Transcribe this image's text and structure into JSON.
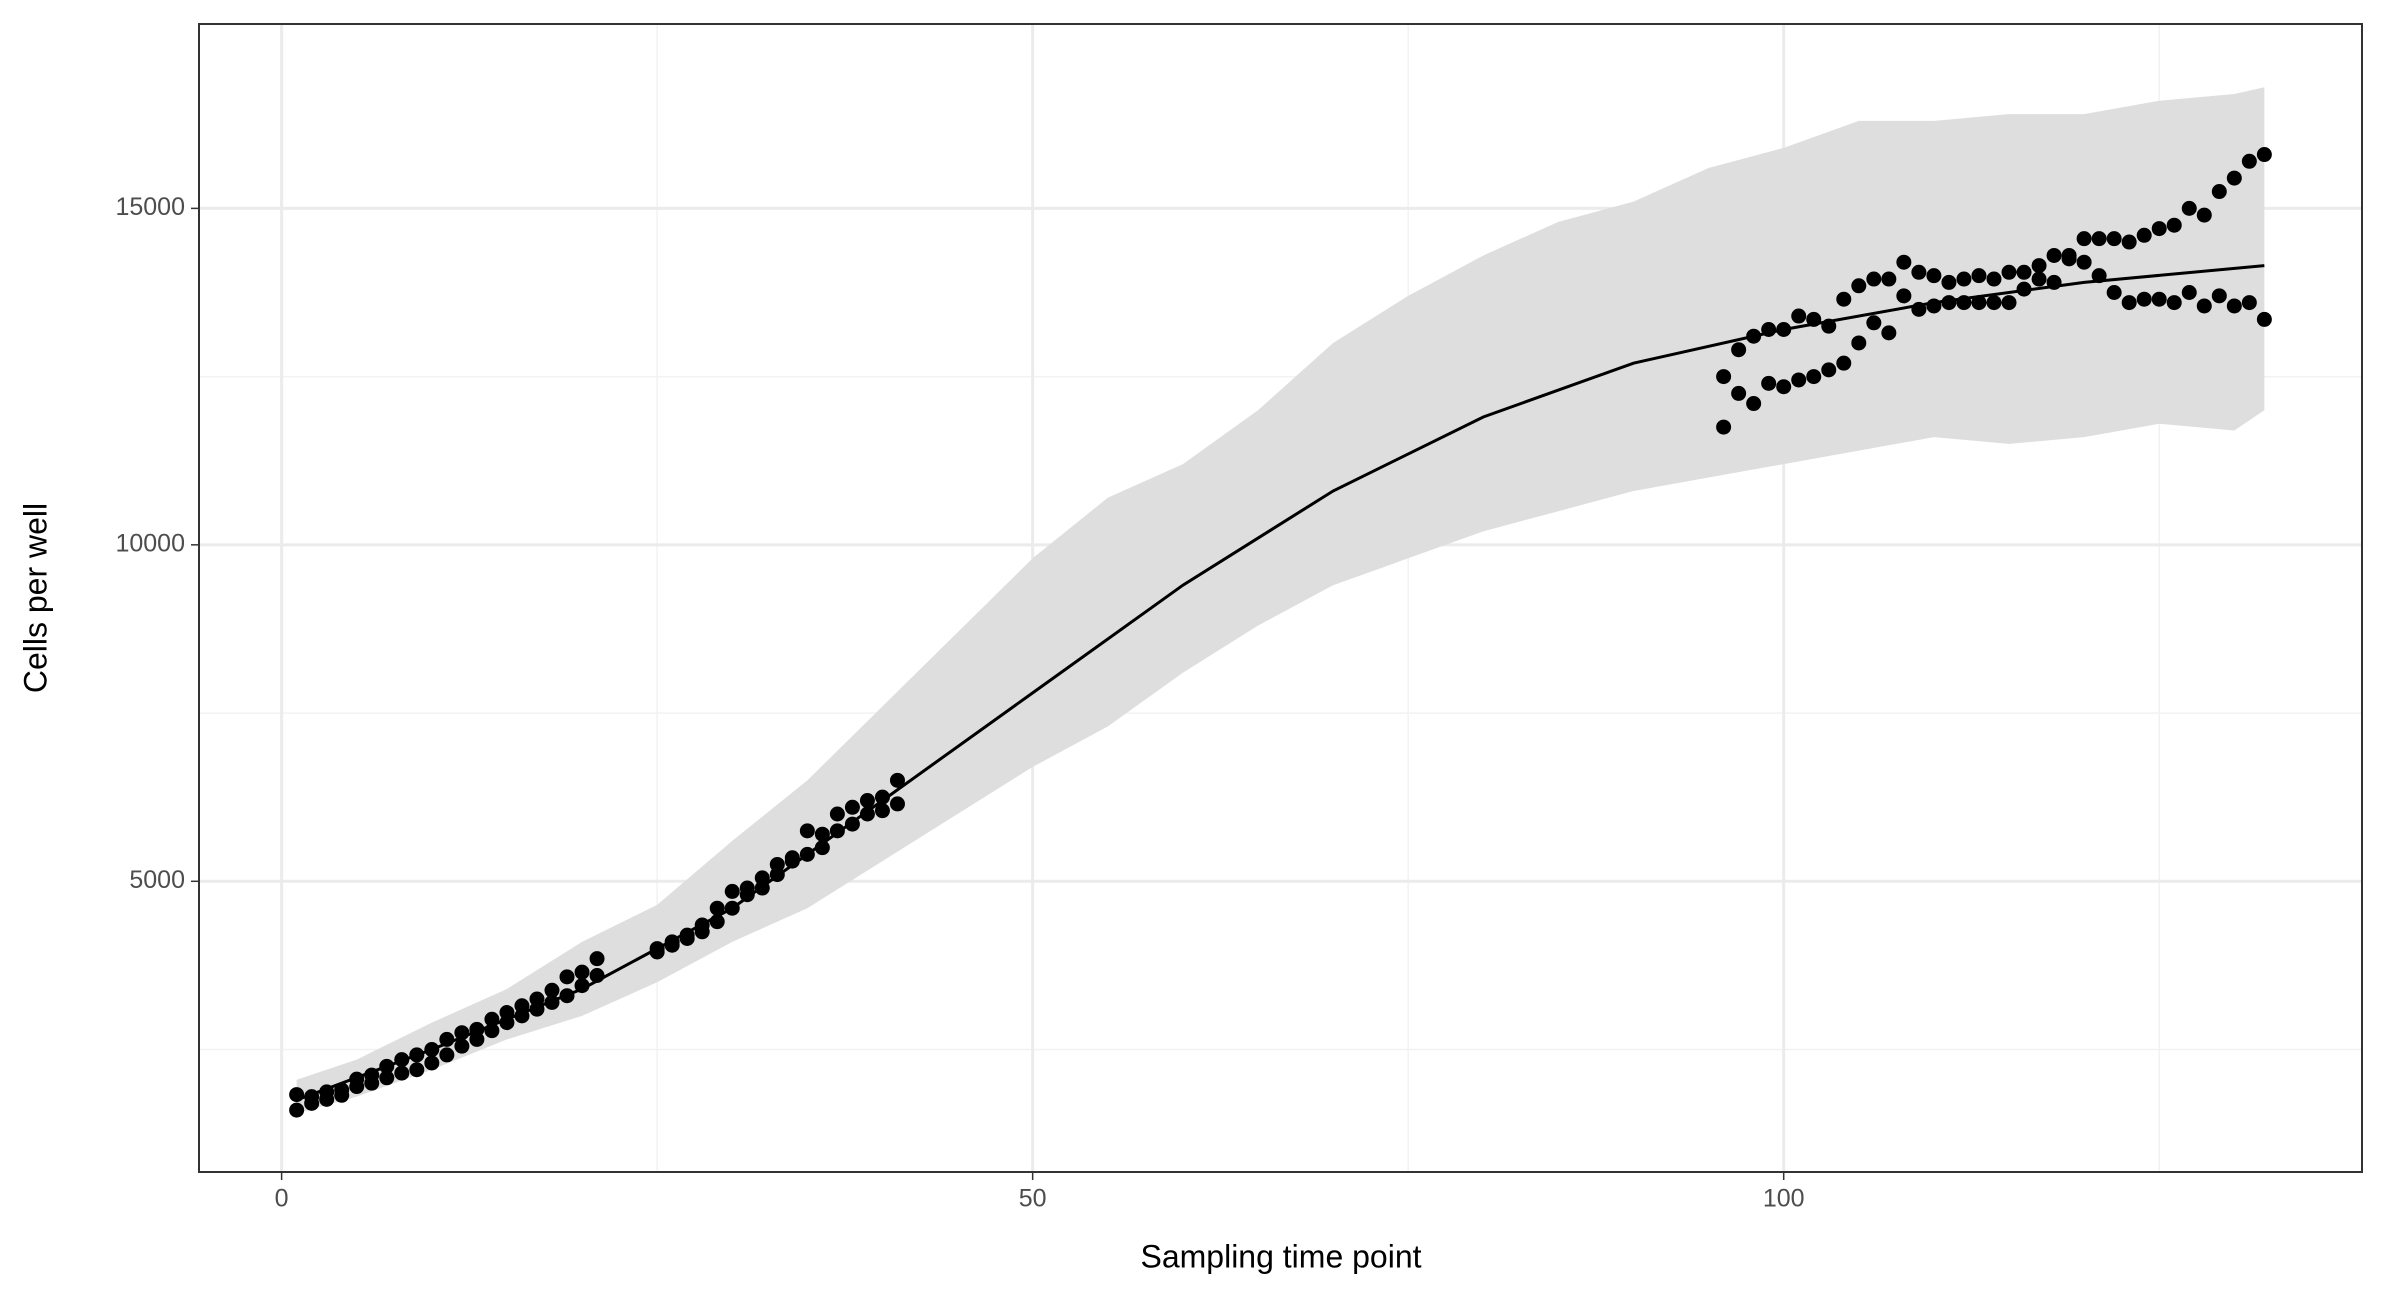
{
  "chart_data": {
    "type": "scatter",
    "x_label": "Sampling time point",
    "y_label": "Cells per well",
    "xlim": [
      -5.5,
      138.5
    ],
    "ylim": [
      680,
      17740
    ],
    "xticks": [
      0,
      50,
      100
    ],
    "yticks": [
      5000,
      10000,
      15000
    ],
    "x_minor_grid": [
      25,
      75,
      125
    ],
    "y_minor_grid": [
      2500,
      7500,
      12500
    ],
    "grid": true,
    "band": {
      "color": "#dedede",
      "x": [
        1,
        5,
        10,
        15,
        20,
        25,
        30,
        35,
        40,
        45,
        50,
        55,
        60,
        65,
        70,
        75,
        80,
        85,
        90,
        95,
        100,
        105,
        110,
        115,
        120,
        125,
        130,
        132
      ],
      "lower": [
        1550,
        1800,
        2200,
        2650,
        3000,
        3500,
        4100,
        4600,
        5300,
        6000,
        6700,
        7300,
        8100,
        8800,
        9400,
        9800,
        10200,
        10500,
        10800,
        11000,
        11200,
        11400,
        11600,
        11500,
        11600,
        11800,
        11700,
        12000
      ],
      "upper": [
        2050,
        2350,
        2900,
        3400,
        4100,
        4650,
        5600,
        6500,
        7600,
        8700,
        9800,
        10700,
        11200,
        12000,
        13000,
        13700,
        14300,
        14800,
        15100,
        15600,
        15900,
        16300,
        16300,
        16400,
        16400,
        16600,
        16700,
        16800
      ]
    },
    "fit": {
      "color": "#000000",
      "x": [
        1,
        10,
        20,
        30,
        40,
        50,
        60,
        70,
        80,
        90,
        100,
        110,
        120,
        132
      ],
      "values": [
        1750,
        2500,
        3400,
        4600,
        6200,
        7800,
        9400,
        10800,
        11900,
        12700,
        13200,
        13600,
        13900,
        14150
      ]
    },
    "points": {
      "color": "#000000",
      "x": [
        1,
        1,
        2,
        2,
        3,
        3,
        4,
        4,
        5,
        5,
        6,
        6,
        7,
        7,
        8,
        8,
        9,
        9,
        10,
        10,
        11,
        11,
        12,
        12,
        13,
        13,
        14,
        14,
        15,
        15,
        16,
        16,
        17,
        17,
        18,
        18,
        19,
        19,
        20,
        20,
        21,
        21,
        25,
        25,
        26,
        26,
        27,
        27,
        28,
        28,
        29,
        29,
        30,
        30,
        31,
        31,
        32,
        32,
        33,
        33,
        34,
        34,
        35,
        35,
        36,
        36,
        37,
        37,
        38,
        38,
        39,
        39,
        40,
        40,
        41,
        41,
        96,
        96,
        97,
        97,
        98,
        98,
        99,
        99,
        100,
        100,
        101,
        101,
        102,
        102,
        103,
        103,
        104,
        104,
        105,
        105,
        106,
        106,
        107,
        107,
        108,
        108,
        109,
        109,
        110,
        110,
        111,
        111,
        112,
        112,
        113,
        113,
        114,
        114,
        115,
        115,
        116,
        116,
        117,
        117,
        118,
        118,
        119,
        119,
        120,
        120,
        121,
        121,
        122,
        122,
        123,
        123,
        124,
        124,
        125,
        125,
        126,
        126,
        127,
        127,
        128,
        128,
        129,
        129,
        130,
        130,
        131,
        131,
        132,
        132
      ],
      "values": [
        1600,
        1830,
        1700,
        1800,
        1760,
        1870,
        1820,
        1900,
        1950,
        2060,
        2000,
        2120,
        2080,
        2250,
        2150,
        2350,
        2200,
        2420,
        2300,
        2500,
        2420,
        2650,
        2550,
        2750,
        2650,
        2800,
        2780,
        2950,
        2900,
        3050,
        3000,
        3150,
        3100,
        3250,
        3200,
        3380,
        3300,
        3580,
        3450,
        3650,
        3600,
        3850,
        3950,
        4000,
        4050,
        4100,
        4150,
        4200,
        4250,
        4350,
        4400,
        4600,
        4600,
        4850,
        4800,
        4900,
        4900,
        5050,
        5100,
        5250,
        5300,
        5350,
        5400,
        5750,
        5500,
        5700,
        5750,
        6000,
        5850,
        6100,
        6000,
        6200,
        6050,
        6250,
        6150,
        6500,
        11750,
        12500,
        12250,
        12900,
        12100,
        13100,
        12400,
        13200,
        12350,
        13200,
        12450,
        13400,
        12500,
        13350,
        12600,
        13250,
        12700,
        13650,
        13000,
        13850,
        13300,
        13950,
        13150,
        13950,
        13700,
        14200,
        13500,
        14050,
        13550,
        14000,
        13600,
        13900,
        13600,
        13950,
        13600,
        14000,
        13600,
        13950,
        13600,
        14050,
        13800,
        14050,
        13950,
        14150,
        13900,
        14300,
        14250,
        14300,
        14200,
        14550,
        14000,
        14550,
        13750,
        14550,
        13600,
        14500,
        13650,
        14600,
        13650,
        14700,
        13600,
        14750,
        13750,
        15000,
        13550,
        14900,
        13700,
        15250,
        13550,
        15450,
        13600,
        15700,
        13350,
        15800
      ]
    }
  }
}
